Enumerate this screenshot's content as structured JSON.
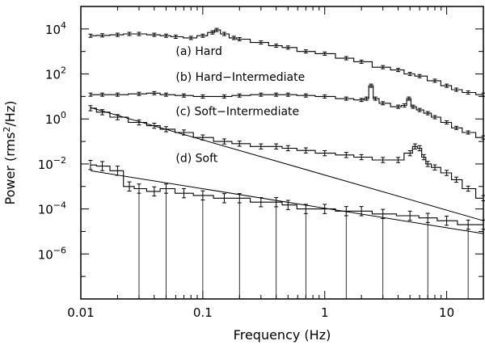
{
  "chart_data": {
    "type": "line",
    "xlabel": "Frequency (Hz)",
    "ylabel_prefix": "Power (rms",
    "ylabel_sup": "2",
    "ylabel_suffix": "/Hz)",
    "x_scale": "log",
    "y_scale": "log",
    "xlim": [
      0.01,
      20
    ],
    "ylim": [
      1e-08,
      100000.0
    ],
    "grid": false,
    "x_ticks": [
      {
        "value": 0.01,
        "label": "0.01"
      },
      {
        "value": 0.1,
        "label": "0.1"
      },
      {
        "value": 1,
        "label": "1"
      },
      {
        "value": 10,
        "label": "10"
      }
    ],
    "y_ticks": [
      {
        "value": 10000,
        "base": "10",
        "exp": "4"
      },
      {
        "value": 100,
        "base": "10",
        "exp": "2"
      },
      {
        "value": 1,
        "base": "10",
        "exp": "0"
      },
      {
        "value": 0.01,
        "base": "10",
        "exp": "−2"
      },
      {
        "value": 0.0001,
        "base": "10",
        "exp": "−4"
      },
      {
        "value": 1e-06,
        "base": "10",
        "exp": "−6"
      }
    ],
    "annotations": [
      {
        "text": "(a) Hard",
        "x": 0.06,
        "y": 700
      },
      {
        "text": "(b) Hard−Intermediate",
        "x": 0.06,
        "y": 50
      },
      {
        "text": "(c) Soft−Intermediate",
        "x": 0.06,
        "y": 1.5
      },
      {
        "text": "(d) Soft",
        "x": 0.06,
        "y": 0.012
      }
    ],
    "series": [
      {
        "points": [
          [
            0.012,
            5000
          ],
          [
            0.015,
            5200
          ],
          [
            0.02,
            5500
          ],
          [
            0.025,
            6000
          ],
          [
            0.03,
            6000
          ],
          [
            0.04,
            5500
          ],
          [
            0.05,
            5000
          ],
          [
            0.06,
            4500
          ],
          [
            0.08,
            4000
          ],
          [
            0.1,
            5000
          ],
          [
            0.12,
            7000
          ],
          [
            0.13,
            9000
          ],
          [
            0.15,
            6000
          ],
          [
            0.18,
            4000
          ],
          [
            0.2,
            3500
          ],
          [
            0.3,
            2500
          ],
          [
            0.4,
            1800
          ],
          [
            0.5,
            1500
          ],
          [
            0.7,
            1000
          ],
          [
            1,
            800
          ],
          [
            1.5,
            500
          ],
          [
            2,
            350
          ],
          [
            3,
            200
          ],
          [
            4,
            150
          ],
          [
            5,
            100
          ],
          [
            6,
            80
          ],
          [
            8,
            50
          ],
          [
            10,
            30
          ],
          [
            12,
            20
          ],
          [
            15,
            15
          ],
          [
            20,
            12
          ]
        ],
        "error_bars": true,
        "color": "#000000"
      },
      {
        "points": [
          [
            0.012,
            12
          ],
          [
            0.015,
            12
          ],
          [
            0.02,
            12
          ],
          [
            0.03,
            13
          ],
          [
            0.04,
            14
          ],
          [
            0.05,
            12
          ],
          [
            0.07,
            11
          ],
          [
            0.1,
            10
          ],
          [
            0.15,
            10
          ],
          [
            0.2,
            11
          ],
          [
            0.3,
            12
          ],
          [
            0.4,
            12
          ],
          [
            0.5,
            12
          ],
          [
            0.7,
            11
          ],
          [
            1,
            10
          ],
          [
            1.5,
            8
          ],
          [
            2,
            7
          ],
          [
            2.2,
            8
          ],
          [
            2.4,
            30
          ],
          [
            2.6,
            8
          ],
          [
            3,
            5
          ],
          [
            4,
            3.5
          ],
          [
            4.5,
            4
          ],
          [
            4.9,
            8
          ],
          [
            5.3,
            3.5
          ],
          [
            6,
            2.5
          ],
          [
            7,
            1.8
          ],
          [
            8,
            1.2
          ],
          [
            10,
            0.7
          ],
          [
            12,
            0.4
          ],
          [
            15,
            0.25
          ],
          [
            20,
            0.15
          ]
        ],
        "error_bars": true,
        "color": "#000000"
      },
      {
        "points": [
          [
            0.012,
            3
          ],
          [
            0.015,
            2
          ],
          [
            0.02,
            1.2
          ],
          [
            0.03,
            0.7
          ],
          [
            0.04,
            0.5
          ],
          [
            0.05,
            0.35
          ],
          [
            0.07,
            0.25
          ],
          [
            0.1,
            0.15
          ],
          [
            0.15,
            0.1
          ],
          [
            0.2,
            0.08
          ],
          [
            0.3,
            0.06
          ],
          [
            0.4,
            0.06
          ],
          [
            0.5,
            0.05
          ],
          [
            0.7,
            0.04
          ],
          [
            1,
            0.03
          ],
          [
            1.5,
            0.025
          ],
          [
            2,
            0.02
          ],
          [
            3,
            0.015
          ],
          [
            4,
            0.015
          ],
          [
            5,
            0.03
          ],
          [
            5.5,
            0.06
          ],
          [
            6,
            0.05
          ],
          [
            6.5,
            0.02
          ],
          [
            7,
            0.01
          ],
          [
            8,
            0.007
          ],
          [
            10,
            0.004
          ],
          [
            12,
            0.002
          ],
          [
            15,
            0.0008
          ],
          [
            20,
            0.0003
          ]
        ],
        "error_bars": true,
        "color": "#000000"
      },
      {
        "points": [
          [
            0.012,
            0.009
          ],
          [
            0.015,
            0.008
          ],
          [
            0.02,
            0.005
          ],
          [
            0.025,
            0.001
          ],
          [
            0.03,
            0.0008
          ],
          [
            0.04,
            0.0006
          ],
          [
            0.05,
            0.0008
          ],
          [
            0.07,
            0.0005
          ],
          [
            0.1,
            0.0004
          ],
          [
            0.15,
            0.0003
          ],
          [
            0.2,
            0.0003
          ],
          [
            0.3,
            0.0002
          ],
          [
            0.4,
            0.0002
          ],
          [
            0.5,
            0.00015
          ],
          [
            0.7,
            0.0001
          ],
          [
            1,
            0.0001
          ],
          [
            1.5,
            8e-05
          ],
          [
            2,
            8e-05
          ],
          [
            3,
            6e-05
          ],
          [
            5,
            5e-05
          ],
          [
            7,
            4e-05
          ],
          [
            10,
            3e-05
          ],
          [
            15,
            2e-05
          ],
          [
            20,
            2e-05
          ]
        ],
        "error_bars": true,
        "color": "#000000"
      }
    ],
    "model_lines": [
      {
        "points": [
          [
            0.012,
            3.2
          ],
          [
            20,
            3e-05
          ]
        ],
        "color": "#000000"
      },
      {
        "points": [
          [
            0.012,
            0.005
          ],
          [
            20,
            8e-06
          ]
        ],
        "color": "#000000"
      }
    ]
  }
}
